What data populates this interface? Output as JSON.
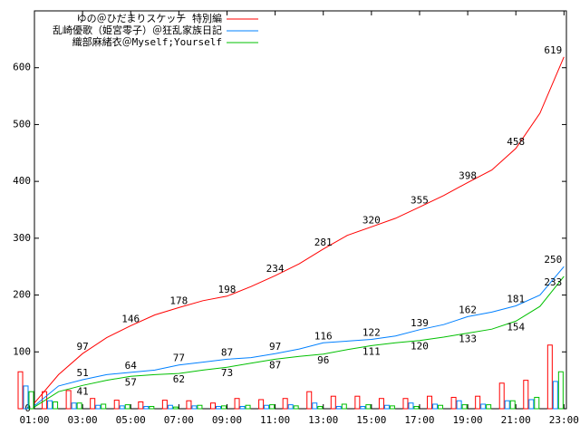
{
  "chart_data": {
    "type": "line",
    "x": [
      1,
      2,
      3,
      4,
      5,
      6,
      7,
      8,
      9,
      10,
      11,
      12,
      13,
      14,
      15,
      16,
      17,
      18,
      19,
      20,
      21,
      22,
      23
    ],
    "xlim": [
      1,
      23.1
    ],
    "xticks": [
      {
        "value": 1,
        "label": "01:00"
      },
      {
        "value": 3,
        "label": "03:00"
      },
      {
        "value": 5,
        "label": "05:00"
      },
      {
        "value": 7,
        "label": "07:00"
      },
      {
        "value": 9,
        "label": "09:00"
      },
      {
        "value": 11,
        "label": "11:00"
      },
      {
        "value": 13,
        "label": "13:00"
      },
      {
        "value": 15,
        "label": "15:00"
      },
      {
        "value": 17,
        "label": "17:00"
      },
      {
        "value": 19,
        "label": "19:00"
      },
      {
        "value": 21,
        "label": "21:00"
      },
      {
        "value": 23,
        "label": "23:00"
      }
    ],
    "ylim": [
      0,
      700
    ],
    "yticks": [
      0,
      100,
      200,
      300,
      400,
      500,
      600
    ],
    "legend": "upper left",
    "series": [
      {
        "name": "ゆの＠ひだまりスケッチ 特別編",
        "color": "#ff0000",
        "values": [
          10,
          60,
          97,
          125,
          146,
          165,
          178,
          190,
          198,
          215,
          234,
          255,
          281,
          305,
          320,
          335,
          355,
          375,
          398,
          420,
          458,
          520,
          619
        ],
        "counts": [
          65,
          30,
          32,
          18,
          15,
          12,
          15,
          14,
          10,
          18,
          16,
          18,
          30,
          22,
          22,
          18,
          18,
          22,
          20,
          22,
          45,
          50,
          112
        ]
      },
      {
        "name": "乱崎優歌（姫宮零子）＠狂乱家族日記",
        "color": "#0080ff",
        "values": [
          5,
          40,
          51,
          60,
          64,
          68,
          77,
          82,
          87,
          90,
          97,
          105,
          116,
          119,
          122,
          128,
          139,
          148,
          162,
          170,
          181,
          200,
          250
        ],
        "counts": [
          40,
          14,
          10,
          6,
          5,
          4,
          6,
          5,
          4,
          4,
          6,
          7,
          10,
          4,
          4,
          6,
          10,
          8,
          14,
          8,
          14,
          16,
          48
        ]
      },
      {
        "name": "織部麻緒衣＠Myself;Yourself",
        "color": "#00c000",
        "values": [
          3,
          30,
          41,
          50,
          57,
          60,
          62,
          68,
          73,
          80,
          87,
          92,
          96,
          104,
          111,
          116,
          120,
          126,
          133,
          140,
          154,
          180,
          233
        ],
        "counts": [
          30,
          12,
          10,
          8,
          7,
          4,
          3,
          6,
          5,
          6,
          7,
          5,
          4,
          8,
          7,
          5,
          4,
          6,
          7,
          7,
          14,
          20,
          65
        ]
      }
    ]
  }
}
